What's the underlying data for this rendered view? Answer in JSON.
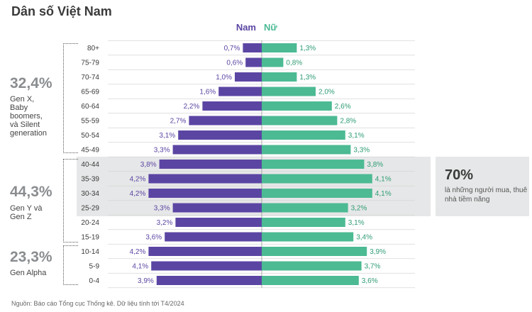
{
  "title": "Dân số Việt Nam",
  "colors": {
    "male": "#5b45a3",
    "female": "#4cba93",
    "grid": "#d5d5d5",
    "highlight": "#e6e7e8"
  },
  "chart_data": {
    "type": "bar",
    "orientation": "horizontal-population-pyramid",
    "categories": [
      "80+",
      "75-79",
      "70-74",
      "65-69",
      "60-64",
      "55-59",
      "50-54",
      "45-49",
      "40-44",
      "35-39",
      "30-34",
      "25-29",
      "20-24",
      "15-19",
      "10-14",
      "5-9",
      "0-4"
    ],
    "series": [
      {
        "name": "Nam",
        "values": [
          0.7,
          0.6,
          1.0,
          1.6,
          2.2,
          2.7,
          3.1,
          3.3,
          3.8,
          4.2,
          4.2,
          3.3,
          3.2,
          3.6,
          4.2,
          4.1,
          3.9
        ],
        "labels": [
          "0,7%",
          "0,6%",
          "1,0%",
          "1,6%",
          "2,2%",
          "2,7%",
          "3,1%",
          "3,3%",
          "3,8%",
          "4,2%",
          "4,2%",
          "3,3%",
          "3,2%",
          "3,6%",
          "4,2%",
          "4,1%",
          "3,9%"
        ]
      },
      {
        "name": "Nữ",
        "values": [
          1.3,
          0.8,
          1.3,
          2.0,
          2.6,
          2.8,
          3.1,
          3.3,
          3.8,
          4.1,
          4.1,
          3.2,
          3.1,
          3.4,
          3.9,
          3.7,
          3.6
        ],
        "labels": [
          "1,3%",
          "0,8%",
          "1,3%",
          "2,0%",
          "2,6%",
          "2,8%",
          "3,1%",
          "3,3%",
          "3,8%",
          "4,1%",
          "4,1%",
          "3,2%",
          "3,1%",
          "3,4%",
          "3,9%",
          "3,7%",
          "3,6%"
        ]
      }
    ],
    "xlim": [
      0,
      5
    ],
    "grid": true
  },
  "groups": [
    {
      "pct": "32,4%",
      "desc": "Gen X,\nBaby\nboomers,\nvà Silent\ngeneration"
    },
    {
      "pct": "44,3%",
      "desc": "Gen Y và\nGen Z"
    },
    {
      "pct": "23,3%",
      "desc": "Gen Alpha"
    }
  ],
  "highlight": {
    "big": "70%",
    "text": "là những người mua, thuê nhà tiềm năng"
  },
  "source": "Nguồn: Báo cáo Tổng cục Thống kê. Dữ liệu tính tới T4/2024"
}
